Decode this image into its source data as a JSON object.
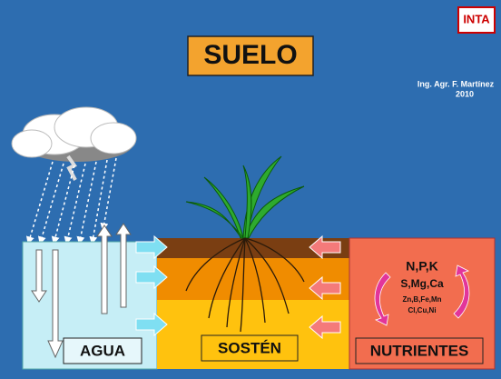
{
  "logo": "INTA",
  "title": "SUELO",
  "author": "Ing. Agr. F. Martínez",
  "year": "2010",
  "nutrients": {
    "lines": [
      "N,P,K",
      "S,Mg,Ca",
      "Zn,B,Fe,Mn",
      "Cl,Cu,Ni"
    ]
  },
  "labels": {
    "water": "AGUA",
    "support": "SOSTÉN",
    "nutrients": "NUTRIENTES"
  }
}
